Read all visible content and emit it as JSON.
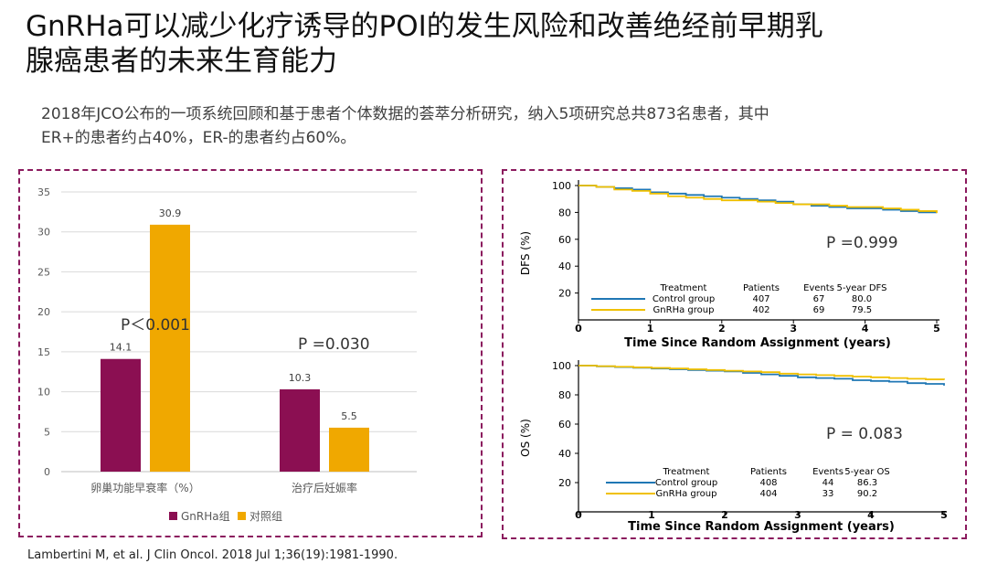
{
  "page": {
    "title_lines": [
      "GnRHa可以减少化疗诱导的POI的发生风险和改善绝经前早期乳",
      "腺癌患者的未来生育能力"
    ],
    "intro_lines": [
      "2018年JCO公布的一项系统回顾和基于患者个体数据的荟萃分析研究，纳入5项研究总共873名患者，其中",
      "ER+的患者约占40%，ER-的患者约占60%。"
    ],
    "citation": "Lambertini M, et al. J Clin Oncol. 2018 Jul 1;36(19):1981-1990."
  },
  "colors": {
    "gnrha": "#8b0f52",
    "control": "#f0a800",
    "panel_border": "#8b1a5e",
    "curve_control": "#1f77b4",
    "curve_gnrha": "#f0c000"
  },
  "chart_data": [
    {
      "type": "bar",
      "categories": [
        "卵巢功能早衰率（%）",
        "治疗后妊娠率"
      ],
      "series": [
        {
          "name": "GnRHa组",
          "values": [
            14.1,
            10.3
          ]
        },
        {
          "name": "对照组",
          "values": [
            30.9,
            5.5
          ]
        }
      ],
      "value_labels": [
        [
          "14.1",
          "30.9"
        ],
        [
          "10.3",
          "5.5"
        ]
      ],
      "y_ticks": [
        0,
        5,
        10,
        15,
        20,
        25,
        30,
        35
      ],
      "ylim": [
        0,
        35
      ],
      "grid": true,
      "legend": "bottom",
      "annotations": [
        "P＜0.001",
        "P =0.030"
      ]
    },
    {
      "type": "line",
      "ylabel": "DFS (%)",
      "xlabel": "Time Since Random Assignment (years)",
      "xlim": [
        0,
        5
      ],
      "ylim": [
        0,
        100
      ],
      "x_ticks": [
        0,
        1,
        2,
        3,
        4,
        5
      ],
      "y_ticks": [
        20,
        40,
        60,
        80,
        100
      ],
      "annotation": "P =0.999",
      "table": {
        "headers": [
          "Treatment",
          "Patients",
          "Events",
          "5-year DFS"
        ],
        "rows": [
          [
            "Control group",
            "407",
            "67",
            "80.0"
          ],
          [
            "GnRHa group",
            "402",
            "69",
            "79.5"
          ]
        ]
      },
      "series": [
        {
          "name": "Control group",
          "x": [
            0,
            0.25,
            0.5,
            0.75,
            1,
            1.25,
            1.5,
            1.75,
            2,
            2.25,
            2.5,
            2.75,
            3,
            3.25,
            3.5,
            3.75,
            4,
            4.25,
            4.5,
            4.75,
            5
          ],
          "y": [
            100,
            99,
            98,
            97,
            95,
            94,
            93,
            92,
            91,
            90,
            89,
            88,
            86,
            85,
            84,
            83,
            83,
            82,
            81,
            80,
            80
          ]
        },
        {
          "name": "GnRHa group",
          "x": [
            0,
            0.25,
            0.5,
            0.75,
            1,
            1.25,
            1.5,
            1.75,
            2,
            2.25,
            2.5,
            2.75,
            3,
            3.25,
            3.5,
            3.75,
            4,
            4.25,
            4.5,
            4.75,
            5
          ],
          "y": [
            100,
            99,
            97,
            96,
            94,
            92,
            91,
            90,
            89,
            89,
            88,
            87,
            86,
            86,
            85,
            84,
            84,
            83,
            82,
            81,
            79.5
          ]
        }
      ]
    },
    {
      "type": "line",
      "ylabel": "OS (%)",
      "xlabel": "Time Since Random Assignment (years)",
      "xlim": [
        0,
        5
      ],
      "ylim": [
        0,
        100
      ],
      "x_ticks": [
        0,
        1,
        2,
        3,
        4,
        5
      ],
      "y_ticks": [
        20,
        40,
        60,
        80,
        100
      ],
      "annotation": "P = 0.083",
      "table": {
        "headers": [
          "Treatment",
          "Patients",
          "Events",
          "5-year OS"
        ],
        "rows": [
          [
            "Control group",
            "408",
            "44",
            "86.3"
          ],
          [
            "GnRHa group",
            "404",
            "33",
            "90.2"
          ]
        ]
      },
      "series": [
        {
          "name": "Control group",
          "x": [
            0,
            0.25,
            0.5,
            0.75,
            1,
            1.25,
            1.5,
            1.75,
            2,
            2.25,
            2.5,
            2.75,
            3,
            3.25,
            3.5,
            3.75,
            4,
            4.25,
            4.5,
            4.75,
            5
          ],
          "y": [
            100,
            99.5,
            99,
            98.5,
            98,
            97.5,
            97,
            96.5,
            96,
            95,
            94,
            93,
            92,
            91.5,
            91,
            90,
            89.5,
            89,
            88,
            87.5,
            86.3
          ]
        },
        {
          "name": "GnRHa group",
          "x": [
            0,
            0.25,
            0.5,
            0.75,
            1,
            1.25,
            1.5,
            1.75,
            2,
            2.25,
            2.5,
            2.75,
            3,
            3.25,
            3.5,
            3.75,
            4,
            4.25,
            4.5,
            4.75,
            5
          ],
          "y": [
            100,
            99.6,
            99.2,
            98.8,
            98.4,
            98,
            97.5,
            97,
            96.5,
            96,
            95.5,
            94.5,
            94,
            93.5,
            93,
            92.5,
            92,
            91.5,
            91,
            90.6,
            90.2
          ]
        }
      ]
    }
  ]
}
